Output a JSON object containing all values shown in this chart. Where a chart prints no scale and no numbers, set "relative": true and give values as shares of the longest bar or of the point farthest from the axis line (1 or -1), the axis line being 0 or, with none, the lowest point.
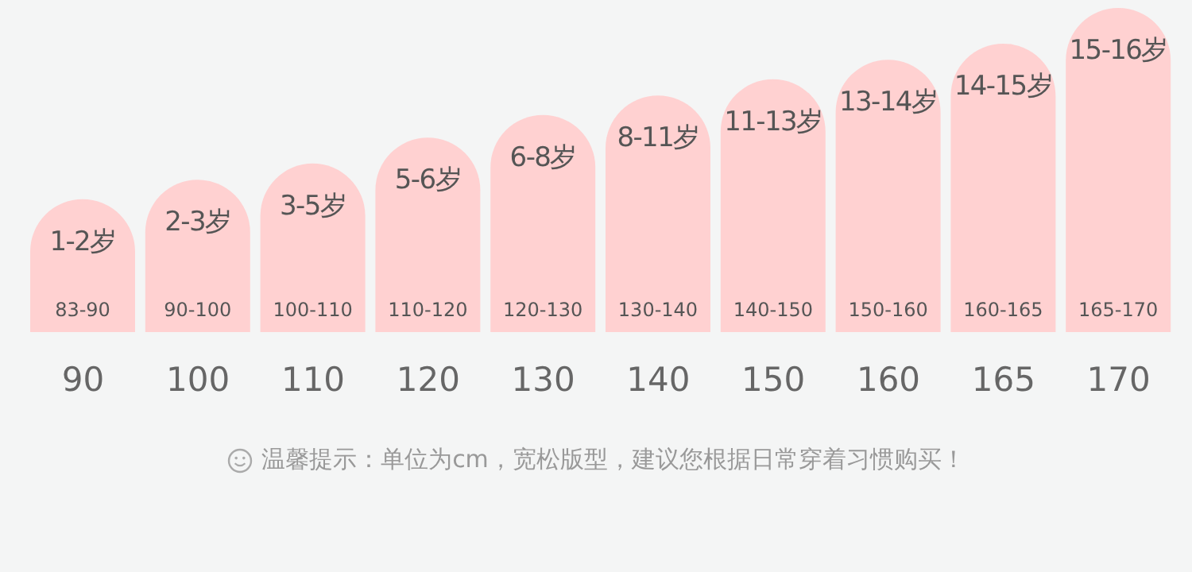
{
  "chart_data": {
    "type": "bar",
    "relative": true,
    "categories": [
      "90",
      "100",
      "110",
      "120",
      "130",
      "140",
      "150",
      "160",
      "165",
      "170"
    ],
    "values": [
      0.41,
      0.47,
      0.52,
      0.6,
      0.67,
      0.73,
      0.78,
      0.84,
      0.89,
      1
    ],
    "color": "#ffd1d1",
    "annotations": [
      "1-2岁",
      "2-3岁",
      "3-5岁",
      "5-6岁",
      "6-8岁",
      "8-11岁",
      "11-13岁",
      "13-14岁",
      "14-15岁",
      "15-16岁",
      "83-90",
      "90-100",
      "100-110",
      "110-120",
      "120-130",
      "130-140",
      "140-150",
      "150-160",
      "160-165",
      "165-170",
      "温馨提示：单位为cm，宽松版型，建议您根据日常穿着习惯购买！"
    ]
  }
}
